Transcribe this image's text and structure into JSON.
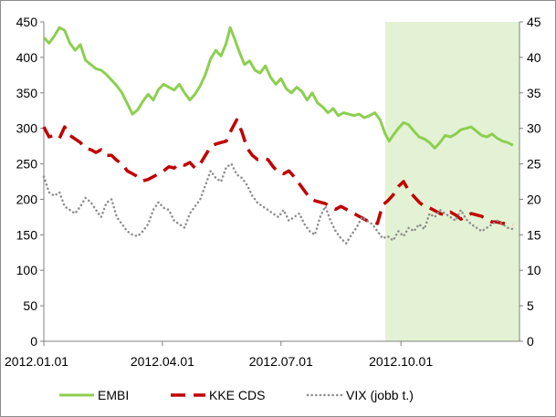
{
  "chart_data": {
    "type": "line",
    "title": "",
    "xlabel": "",
    "ylabel": "",
    "ylim_left": [
      0,
      450
    ],
    "ylim_right": [
      0,
      45
    ],
    "yticks_left": [
      "0",
      "50",
      "100",
      "150",
      "200",
      "250",
      "300",
      "350",
      "400",
      "450"
    ],
    "yticks_right": [
      "0",
      "5",
      "10",
      "15",
      "20",
      "25",
      "30",
      "35",
      "40",
      "45"
    ],
    "x_range_days": [
      0,
      365
    ],
    "xticks": [
      {
        "day": 0,
        "label": "2012.01.01"
      },
      {
        "day": 91,
        "label": "2012.04.01"
      },
      {
        "day": 182,
        "label": "2012.07.01"
      },
      {
        "day": 274,
        "label": "2012.10.01"
      }
    ],
    "shaded_region_days": [
      262,
      365
    ],
    "shaded_color": "#e3f2d4",
    "legend_position": "bottom",
    "series": [
      {
        "name": "EMBI",
        "axis": "left",
        "style": "solid",
        "color": "#8ccf50",
        "points": [
          [
            0,
            428
          ],
          [
            4,
            420
          ],
          [
            8,
            430
          ],
          [
            12,
            442
          ],
          [
            16,
            438
          ],
          [
            20,
            420
          ],
          [
            24,
            410
          ],
          [
            28,
            418
          ],
          [
            32,
            396
          ],
          [
            36,
            390
          ],
          [
            40,
            384
          ],
          [
            44,
            382
          ],
          [
            48,
            376
          ],
          [
            52,
            368
          ],
          [
            56,
            360
          ],
          [
            60,
            350
          ],
          [
            64,
            335
          ],
          [
            68,
            320
          ],
          [
            72,
            326
          ],
          [
            76,
            338
          ],
          [
            80,
            348
          ],
          [
            84,
            340
          ],
          [
            88,
            355
          ],
          [
            92,
            362
          ],
          [
            96,
            358
          ],
          [
            100,
            354
          ],
          [
            104,
            362
          ],
          [
            108,
            350
          ],
          [
            112,
            340
          ],
          [
            116,
            348
          ],
          [
            120,
            360
          ],
          [
            124,
            376
          ],
          [
            128,
            398
          ],
          [
            132,
            410
          ],
          [
            136,
            402
          ],
          [
            140,
            420
          ],
          [
            143,
            442
          ],
          [
            146,
            428
          ],
          [
            150,
            408
          ],
          [
            154,
            390
          ],
          [
            158,
            395
          ],
          [
            162,
            382
          ],
          [
            166,
            378
          ],
          [
            170,
            388
          ],
          [
            174,
            372
          ],
          [
            178,
            362
          ],
          [
            182,
            370
          ],
          [
            186,
            356
          ],
          [
            190,
            350
          ],
          [
            194,
            358
          ],
          [
            198,
            352
          ],
          [
            202,
            340
          ],
          [
            206,
            350
          ],
          [
            210,
            336
          ],
          [
            214,
            330
          ],
          [
            218,
            322
          ],
          [
            222,
            328
          ],
          [
            226,
            318
          ],
          [
            230,
            322
          ],
          [
            234,
            320
          ],
          [
            238,
            318
          ],
          [
            242,
            320
          ],
          [
            246,
            315
          ],
          [
            250,
            318
          ],
          [
            254,
            322
          ],
          [
            258,
            312
          ],
          [
            262,
            292
          ],
          [
            265,
            282
          ],
          [
            268,
            290
          ],
          [
            272,
            300
          ],
          [
            276,
            308
          ],
          [
            280,
            305
          ],
          [
            284,
            296
          ],
          [
            288,
            288
          ],
          [
            292,
            285
          ],
          [
            296,
            280
          ],
          [
            300,
            272
          ],
          [
            304,
            280
          ],
          [
            308,
            290
          ],
          [
            312,
            288
          ],
          [
            316,
            292
          ],
          [
            320,
            298
          ],
          [
            324,
            300
          ],
          [
            328,
            302
          ],
          [
            332,
            296
          ],
          [
            336,
            290
          ],
          [
            340,
            288
          ],
          [
            344,
            292
          ],
          [
            348,
            286
          ],
          [
            352,
            282
          ],
          [
            356,
            280
          ],
          [
            360,
            276
          ]
        ]
      },
      {
        "name": "KKE CDS",
        "axis": "left",
        "style": "dashed",
        "color": "#c00000",
        "points": [
          [
            0,
            302
          ],
          [
            4,
            288
          ],
          [
            8,
            290
          ],
          [
            12,
            286
          ],
          [
            16,
            302
          ],
          [
            20,
            290
          ],
          [
            24,
            285
          ],
          [
            28,
            280
          ],
          [
            32,
            272
          ],
          [
            36,
            270
          ],
          [
            40,
            266
          ],
          [
            44,
            270
          ],
          [
            48,
            262
          ],
          [
            52,
            262
          ],
          [
            56,
            255
          ],
          [
            60,
            250
          ],
          [
            64,
            240
          ],
          [
            68,
            236
          ],
          [
            72,
            232
          ],
          [
            76,
            226
          ],
          [
            80,
            228
          ],
          [
            84,
            232
          ],
          [
            88,
            236
          ],
          [
            92,
            240
          ],
          [
            96,
            246
          ],
          [
            100,
            244
          ],
          [
            104,
            250
          ],
          [
            108,
            248
          ],
          [
            112,
            252
          ],
          [
            116,
            244
          ],
          [
            120,
            250
          ],
          [
            124,
            262
          ],
          [
            128,
            274
          ],
          [
            132,
            278
          ],
          [
            136,
            280
          ],
          [
            140,
            282
          ],
          [
            144,
            298
          ],
          [
            148,
            312
          ],
          [
            152,
            295
          ],
          [
            156,
            272
          ],
          [
            160,
            262
          ],
          [
            164,
            256
          ],
          [
            168,
            258
          ],
          [
            172,
            256
          ],
          [
            176,
            246
          ],
          [
            180,
            238
          ],
          [
            184,
            236
          ],
          [
            188,
            240
          ],
          [
            192,
            232
          ],
          [
            196,
            222
          ],
          [
            200,
            212
          ],
          [
            204,
            202
          ],
          [
            208,
            198
          ],
          [
            212,
            196
          ],
          [
            216,
            194
          ],
          [
            220,
            190
          ],
          [
            224,
            186
          ],
          [
            228,
            190
          ],
          [
            232,
            186
          ],
          [
            236,
            182
          ],
          [
            240,
            178
          ],
          [
            244,
            174
          ],
          [
            248,
            170
          ],
          [
            252,
            168
          ],
          [
            256,
            166
          ],
          [
            260,
            192
          ],
          [
            264,
            198
          ],
          [
            268,
            206
          ],
          [
            272,
            218
          ],
          [
            276,
            225
          ],
          [
            280,
            212
          ],
          [
            284,
            204
          ],
          [
            288,
            196
          ],
          [
            292,
            190
          ],
          [
            296,
            188
          ],
          [
            300,
            184
          ],
          [
            304,
            180
          ],
          [
            308,
            178
          ],
          [
            312,
            182
          ],
          [
            316,
            178
          ],
          [
            320,
            172
          ],
          [
            324,
            176
          ],
          [
            328,
            180
          ],
          [
            332,
            178
          ],
          [
            336,
            176
          ],
          [
            340,
            172
          ],
          [
            344,
            168
          ],
          [
            348,
            168
          ],
          [
            352,
            166
          ],
          [
            356,
            166
          ],
          [
            360,
            164
          ]
        ]
      },
      {
        "name": "VIX (jobb t.)",
        "axis": "right",
        "style": "dotted",
        "color": "#8c8c8c",
        "points": [
          [
            0,
            23.2
          ],
          [
            4,
            21.0
          ],
          [
            8,
            20.5
          ],
          [
            12,
            21.0
          ],
          [
            16,
            19.0
          ],
          [
            20,
            18.5
          ],
          [
            24,
            18.0
          ],
          [
            28,
            19.0
          ],
          [
            32,
            20.2
          ],
          [
            36,
            19.6
          ],
          [
            40,
            18.5
          ],
          [
            44,
            17.5
          ],
          [
            48,
            19.5
          ],
          [
            52,
            20.0
          ],
          [
            56,
            17.5
          ],
          [
            60,
            16.5
          ],
          [
            64,
            15.5
          ],
          [
            68,
            15.0
          ],
          [
            72,
            14.8
          ],
          [
            76,
            15.5
          ],
          [
            80,
            16.5
          ],
          [
            84,
            18.5
          ],
          [
            88,
            19.6
          ],
          [
            92,
            18.8
          ],
          [
            96,
            18.5
          ],
          [
            100,
            17.0
          ],
          [
            104,
            16.5
          ],
          [
            108,
            16.0
          ],
          [
            112,
            18.0
          ],
          [
            116,
            19.0
          ],
          [
            120,
            20.0
          ],
          [
            124,
            22.0
          ],
          [
            128,
            24.0
          ],
          [
            132,
            23.0
          ],
          [
            136,
            22.5
          ],
          [
            140,
            24.5
          ],
          [
            144,
            25.0
          ],
          [
            148,
            23.5
          ],
          [
            152,
            23.0
          ],
          [
            156,
            22.0
          ],
          [
            160,
            20.5
          ],
          [
            164,
            19.5
          ],
          [
            168,
            19.0
          ],
          [
            172,
            18.5
          ],
          [
            176,
            18.0
          ],
          [
            180,
            17.5
          ],
          [
            184,
            18.5
          ],
          [
            188,
            17.0
          ],
          [
            192,
            17.5
          ],
          [
            196,
            18.0
          ],
          [
            200,
            16.5
          ],
          [
            204,
            15.5
          ],
          [
            208,
            15.0
          ],
          [
            212,
            17.5
          ],
          [
            216,
            19.0
          ],
          [
            220,
            17.0
          ],
          [
            224,
            15.5
          ],
          [
            228,
            14.5
          ],
          [
            232,
            13.8
          ],
          [
            236,
            15.0
          ],
          [
            240,
            16.0
          ],
          [
            244,
            17.5
          ],
          [
            248,
            17.0
          ],
          [
            252,
            16.5
          ],
          [
            256,
            15.5
          ],
          [
            260,
            14.5
          ],
          [
            264,
            14.8
          ],
          [
            268,
            14.2
          ],
          [
            272,
            15.5
          ],
          [
            276,
            14.8
          ],
          [
            280,
            16.0
          ],
          [
            284,
            15.5
          ],
          [
            288,
            16.5
          ],
          [
            292,
            15.8
          ],
          [
            296,
            18.0
          ],
          [
            300,
            17.5
          ],
          [
            304,
            18.5
          ],
          [
            308,
            18.0
          ],
          [
            312,
            17.5
          ],
          [
            316,
            17.0
          ],
          [
            320,
            18.5
          ],
          [
            324,
            17.2
          ],
          [
            328,
            16.5
          ],
          [
            332,
            16.0
          ],
          [
            336,
            15.5
          ],
          [
            340,
            16.0
          ],
          [
            344,
            16.5
          ],
          [
            348,
            17.0
          ],
          [
            352,
            16.5
          ],
          [
            356,
            16.0
          ],
          [
            360,
            15.8
          ]
        ]
      }
    ]
  }
}
